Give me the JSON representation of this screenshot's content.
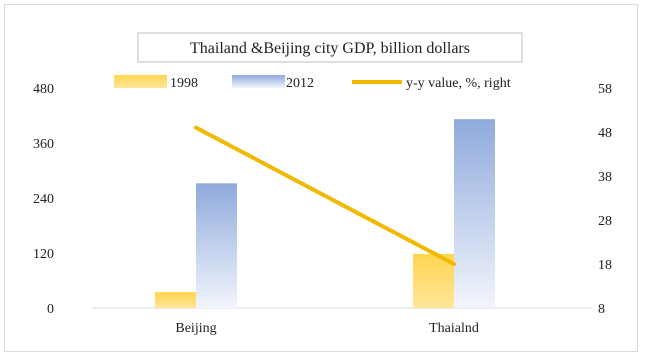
{
  "chart_data": {
    "type": "bar",
    "title": "Thailand &Beijing city GDP, billion dollars",
    "categories": [
      "Beijing",
      "Thaialnd"
    ],
    "series": [
      {
        "name": "1998",
        "type": "bar",
        "axis": "left",
        "values": [
          35,
          118
        ],
        "color": "#ffd54f"
      },
      {
        "name": "2012",
        "type": "bar",
        "axis": "left",
        "values": [
          272,
          412
        ],
        "color": "#9fb6e6"
      },
      {
        "name": "y-y value, %, right",
        "type": "line",
        "axis": "right",
        "values": [
          49,
          18
        ],
        "color": "#f2b800"
      }
    ],
    "left_axis": {
      "ticks": [
        "0",
        "120",
        "240",
        "360",
        "480"
      ],
      "range": [
        0,
        480
      ]
    },
    "right_axis": {
      "ticks": [
        "8",
        "18",
        "28",
        "38",
        "48",
        "58"
      ],
      "range": [
        8,
        58
      ]
    },
    "grid": false,
    "legend_position": "top"
  }
}
